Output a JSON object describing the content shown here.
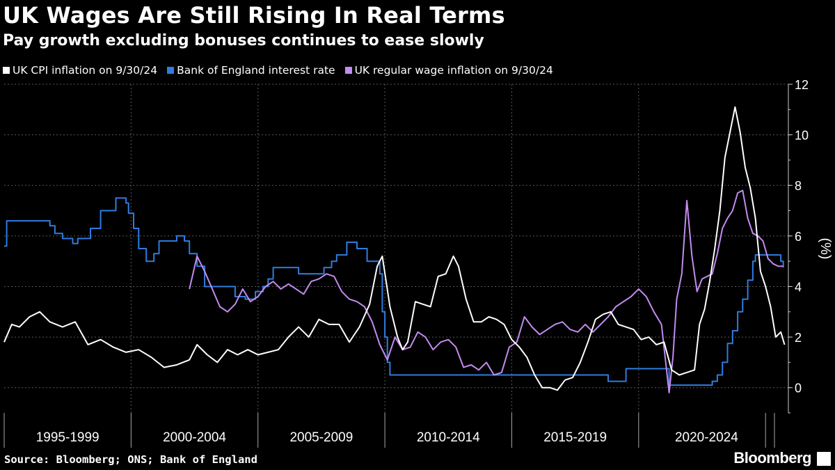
{
  "header": {
    "title": "UK Wages Are Still Rising In Real Terms",
    "subtitle": "Pay growth excluding bonuses continues to ease slowly"
  },
  "legend": [
    {
      "label": "UK CPI inflation on 9/30/24",
      "color": "#ffffff"
    },
    {
      "label": "Bank of England interest rate",
      "color": "#2f7de1"
    },
    {
      "label": "UK regular wage inflation on 9/30/24",
      "color": "#c38cf0"
    }
  ],
  "footer": {
    "source": "Source: Bloomberg; ONS; Bank of England",
    "brand": "Bloomberg",
    "brand_icon": "bloomberg-terminal-icon"
  },
  "chart_data": {
    "type": "line",
    "ylabel": "(%)",
    "ylim": [
      -1,
      12
    ],
    "yticks": [
      0,
      2,
      4,
      6,
      8,
      10,
      12
    ],
    "xlim": [
      1994.0,
      2024.9
    ],
    "x_periods": [
      "1995-1999",
      "2000-2004",
      "2005-2009",
      "2010-2014",
      "2015-2019",
      "2020-2024"
    ],
    "grid": true,
    "series": [
      {
        "name": "UK CPI inflation on 9/30/24",
        "color": "#ffffff",
        "x": [
          1994.0,
          1994.3,
          1994.6,
          1995.0,
          1995.4,
          1995.8,
          1996.3,
          1996.8,
          1997.3,
          1997.8,
          1998.3,
          1998.8,
          1999.3,
          1999.8,
          2000.3,
          2000.8,
          2001.3,
          2001.6,
          2002.0,
          2002.4,
          2002.8,
          2003.2,
          2003.6,
          2004.0,
          2004.4,
          2004.8,
          2005.2,
          2005.6,
          2006.0,
          2006.4,
          2006.8,
          2007.2,
          2007.6,
          2008.0,
          2008.4,
          2008.7,
          2008.9,
          2009.2,
          2009.5,
          2009.7,
          2009.9,
          2010.2,
          2010.5,
          2010.8,
          2011.1,
          2011.4,
          2011.7,
          2011.9,
          2012.2,
          2012.5,
          2012.8,
          2013.1,
          2013.4,
          2013.7,
          2014.0,
          2014.3,
          2014.6,
          2014.9,
          2015.2,
          2015.5,
          2015.8,
          2016.1,
          2016.4,
          2016.7,
          2017.0,
          2017.3,
          2017.6,
          2017.9,
          2018.2,
          2018.5,
          2018.8,
          2019.1,
          2019.4,
          2019.7,
          2020.0,
          2020.3,
          2020.6,
          2020.9,
          2021.2,
          2021.4,
          2021.6,
          2021.8,
          2022.0,
          2022.2,
          2022.4,
          2022.6,
          2022.8,
          2023.0,
          2023.2,
          2023.4,
          2023.6,
          2023.8,
          2024.0,
          2024.2,
          2024.4,
          2024.6,
          2024.75
        ],
        "values": [
          1.8,
          2.5,
          2.4,
          2.8,
          3.0,
          2.6,
          2.4,
          2.6,
          1.7,
          1.9,
          1.6,
          1.4,
          1.5,
          1.2,
          0.8,
          0.9,
          1.1,
          1.7,
          1.3,
          1.0,
          1.5,
          1.3,
          1.5,
          1.3,
          1.4,
          1.5,
          2.0,
          2.4,
          2.0,
          2.7,
          2.5,
          2.5,
          1.8,
          2.4,
          3.3,
          4.8,
          5.2,
          3.2,
          2.0,
          1.5,
          1.8,
          3.4,
          3.3,
          3.2,
          4.4,
          4.5,
          5.2,
          4.8,
          3.5,
          2.6,
          2.6,
          2.8,
          2.7,
          2.5,
          1.9,
          1.6,
          1.2,
          0.5,
          0.0,
          0.0,
          -0.1,
          0.3,
          0.4,
          1.0,
          1.8,
          2.7,
          2.9,
          3.0,
          2.5,
          2.4,
          2.3,
          1.9,
          2.0,
          1.7,
          1.8,
          0.7,
          0.5,
          0.6,
          0.7,
          2.5,
          3.1,
          4.2,
          5.5,
          7.0,
          9.1,
          10.1,
          11.1,
          10.1,
          8.7,
          7.9,
          6.7,
          4.6,
          4.0,
          3.2,
          2.0,
          2.2,
          1.7
        ]
      },
      {
        "name": "Bank of England interest rate",
        "color": "#2f7de1",
        "x": [
          1994.0,
          1994.1,
          1995.1,
          1995.8,
          1996.0,
          1996.3,
          1996.7,
          1996.9,
          1997.4,
          1997.8,
          1998.4,
          1998.8,
          1998.9,
          1999.1,
          1999.3,
          1999.6,
          1999.9,
          2000.1,
          2000.8,
          2001.1,
          2001.3,
          2001.6,
          2001.9,
          2003.1,
          2003.5,
          2003.9,
          2004.2,
          2004.4,
          2004.6,
          2005.6,
          2006.6,
          2006.9,
          2007.1,
          2007.5,
          2007.9,
          2008.3,
          2008.6,
          2008.8,
          2008.9,
          2009.0,
          2009.1,
          2009.2,
          2016.5,
          2017.8,
          2018.5,
          2020.2,
          2020.3,
          2021.9,
          2022.1,
          2022.3,
          2022.5,
          2022.7,
          2022.9,
          2023.1,
          2023.3,
          2023.5,
          2023.6,
          2024.6,
          2024.7
        ],
        "values": [
          5.6,
          6.6,
          6.6,
          6.4,
          6.1,
          5.9,
          5.7,
          5.9,
          6.3,
          7.0,
          7.5,
          7.3,
          6.9,
          6.3,
          5.5,
          5.0,
          5.3,
          5.8,
          6.0,
          5.8,
          5.3,
          4.8,
          4.0,
          3.6,
          3.5,
          3.8,
          4.0,
          4.3,
          4.75,
          4.5,
          4.75,
          5.0,
          5.25,
          5.75,
          5.5,
          5.0,
          5.0,
          4.5,
          3.0,
          2.0,
          1.0,
          0.5,
          0.5,
          0.25,
          0.75,
          0.1,
          0.1,
          0.25,
          0.5,
          1.0,
          1.75,
          2.25,
          3.0,
          3.5,
          4.25,
          5.0,
          5.25,
          5.0,
          4.75
        ]
      },
      {
        "name": "UK regular wage inflation on 9/30/24",
        "color": "#c38cf0",
        "x": [
          2001.3,
          2001.6,
          2001.9,
          2002.2,
          2002.5,
          2002.8,
          2003.1,
          2003.4,
          2003.7,
          2004.0,
          2004.3,
          2004.6,
          2004.9,
          2005.2,
          2005.5,
          2005.8,
          2006.1,
          2006.4,
          2006.7,
          2007.0,
          2007.3,
          2007.6,
          2007.9,
          2008.2,
          2008.5,
          2008.8,
          2009.1,
          2009.4,
          2009.7,
          2010.0,
          2010.3,
          2010.6,
          2010.9,
          2011.2,
          2011.5,
          2011.8,
          2012.1,
          2012.4,
          2012.7,
          2013.0,
          2013.3,
          2013.6,
          2013.9,
          2014.2,
          2014.5,
          2014.8,
          2015.1,
          2015.4,
          2015.7,
          2016.0,
          2016.3,
          2016.6,
          2016.9,
          2017.2,
          2017.5,
          2017.8,
          2018.1,
          2018.4,
          2018.7,
          2019.0,
          2019.3,
          2019.6,
          2019.9,
          2020.2,
          2020.35,
          2020.5,
          2020.7,
          2020.9,
          2021.1,
          2021.3,
          2021.5,
          2021.7,
          2021.9,
          2022.1,
          2022.3,
          2022.5,
          2022.7,
          2022.9,
          2023.1,
          2023.3,
          2023.5,
          2023.7,
          2023.9,
          2024.1,
          2024.3,
          2024.5,
          2024.7
        ],
        "values": [
          3.9,
          5.2,
          4.6,
          3.9,
          3.2,
          3.0,
          3.3,
          3.9,
          3.4,
          3.6,
          4.0,
          4.2,
          3.9,
          4.1,
          3.9,
          3.7,
          4.2,
          4.3,
          4.5,
          4.4,
          3.8,
          3.5,
          3.4,
          3.2,
          2.6,
          1.7,
          1.1,
          2.0,
          1.5,
          1.6,
          2.2,
          2.0,
          1.5,
          1.8,
          1.9,
          1.6,
          0.8,
          0.9,
          0.7,
          1.0,
          0.5,
          0.6,
          1.6,
          1.8,
          2.8,
          2.4,
          2.1,
          2.3,
          2.5,
          2.6,
          2.3,
          2.2,
          2.5,
          2.2,
          2.5,
          2.8,
          3.2,
          3.4,
          3.6,
          3.9,
          3.6,
          3.0,
          2.5,
          -0.2,
          1.2,
          3.5,
          4.5,
          7.4,
          5.2,
          3.8,
          4.3,
          4.4,
          4.5,
          5.3,
          6.3,
          6.7,
          7.0,
          7.7,
          7.8,
          6.7,
          6.1,
          6.0,
          5.8,
          5.1,
          4.9,
          4.8,
          4.8
        ]
      }
    ]
  }
}
